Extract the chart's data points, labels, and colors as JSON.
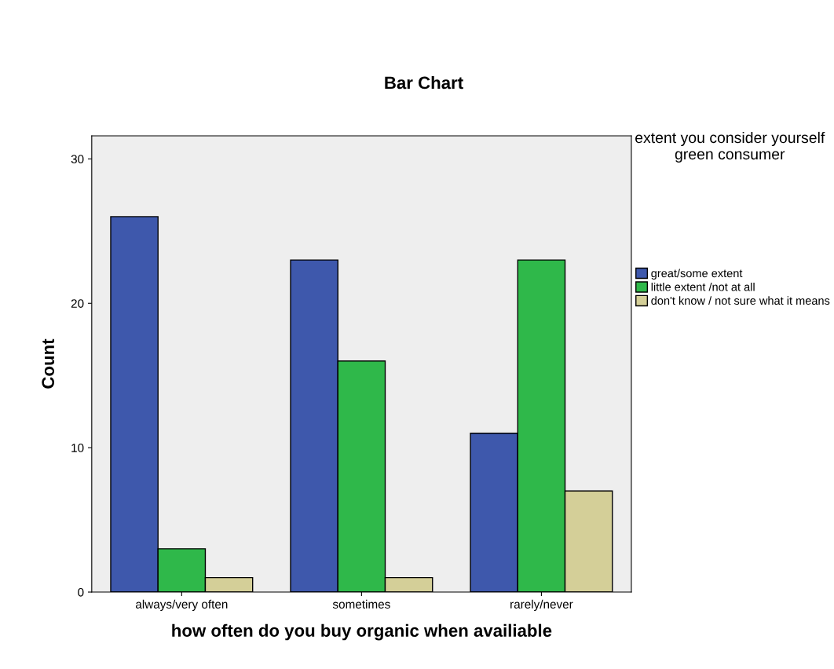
{
  "chart_data": {
    "type": "bar",
    "title": "Bar Chart",
    "xlabel": "how often do you buy organic when availiable",
    "ylabel": "Count",
    "legend_title": "extent you consider yourself green consumer",
    "categories": [
      "always/very often",
      "sometimes",
      "rarely/never"
    ],
    "series": [
      {
        "name": "great/some extent",
        "color": "#3e58ac",
        "values": [
          26,
          23,
          11
        ]
      },
      {
        "name": "little extent /not at all",
        "color": "#2fb84a",
        "values": [
          3,
          16,
          23
        ]
      },
      {
        "name": "don't know / not sure what it means",
        "color": "#d4cf98",
        "values": [
          1,
          1,
          7
        ]
      }
    ],
    "ylim": [
      0,
      31.6
    ],
    "yticks": [
      0,
      10,
      20,
      30
    ],
    "grid": false,
    "legend": "right"
  }
}
